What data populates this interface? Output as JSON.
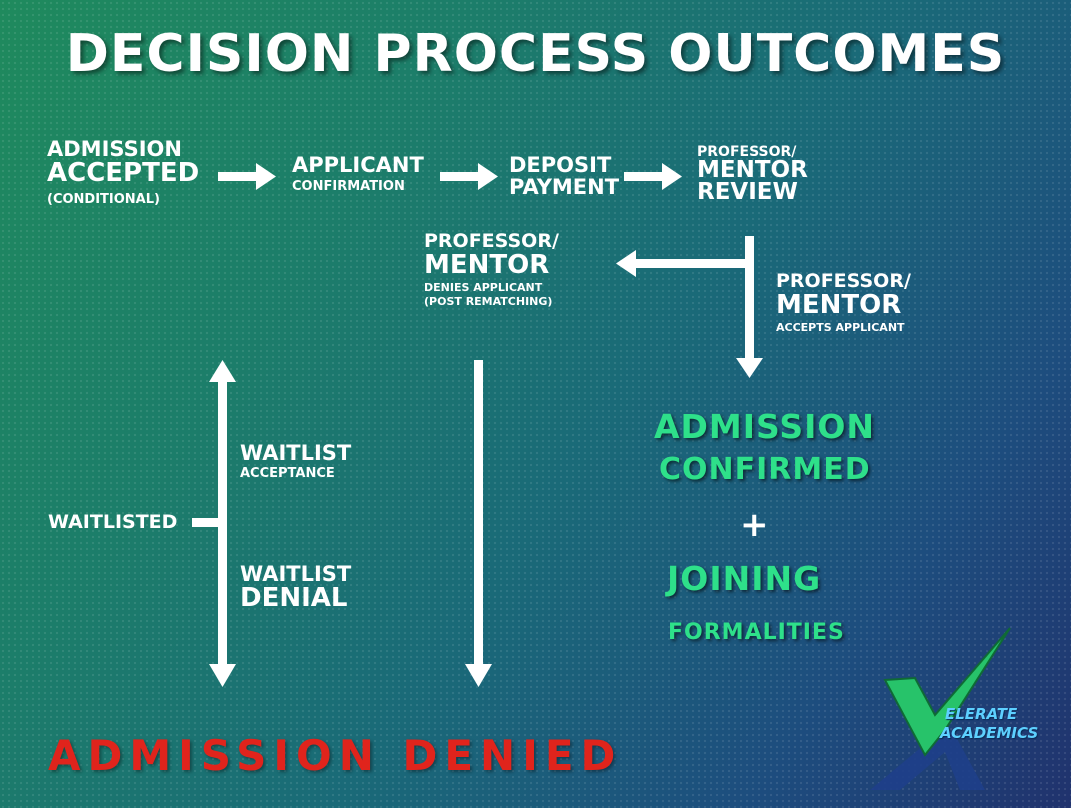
{
  "title": "DECISION PROCESS OUTCOMES",
  "nodes": {
    "admission_accepted": {
      "line1": "ADMISSION",
      "line2": "ACCEPTED",
      "line3": "(CONDITIONAL)"
    },
    "applicant_confirmation": {
      "line1": "APPLICANT",
      "line2": "CONFIRMATION"
    },
    "deposit_payment": {
      "line1": "DEPOSIT",
      "line2": "PAYMENT"
    },
    "mentor_review": {
      "line1": "PROFESSOR/",
      "line2": "MENTOR",
      "line3": "REVIEW"
    },
    "mentor_denies": {
      "line1": "PROFESSOR/",
      "line2": "MENTOR",
      "line3": "DENIES APPLICANT",
      "line4": "(POST REMATCHING)"
    },
    "mentor_accepts": {
      "line1": "PROFESSOR/",
      "line2": "MENTOR",
      "line3": "ACCEPTS APPLICANT"
    },
    "admission_confirmed": {
      "line1": "ADMISSION",
      "line2": "CONFIRMED",
      "plus": "+",
      "line3": "JOINING",
      "line4": "FORMALITIES"
    },
    "waitlisted": "WAITLISTED",
    "waitlist_acceptance": {
      "line1": "WAITLIST",
      "line2": "ACCEPTANCE"
    },
    "waitlist_denial": {
      "line1": "WAITLIST",
      "line2": "DENIAL"
    },
    "admission_denied": "ADMISSION DENIED"
  },
  "logo": {
    "line1": "ELERATE",
    "line2": "ACADEMICS"
  },
  "colors": {
    "confirmed_green": "#2ee08a",
    "denied_red": "#e0241c",
    "arrow": "#ffffff"
  }
}
